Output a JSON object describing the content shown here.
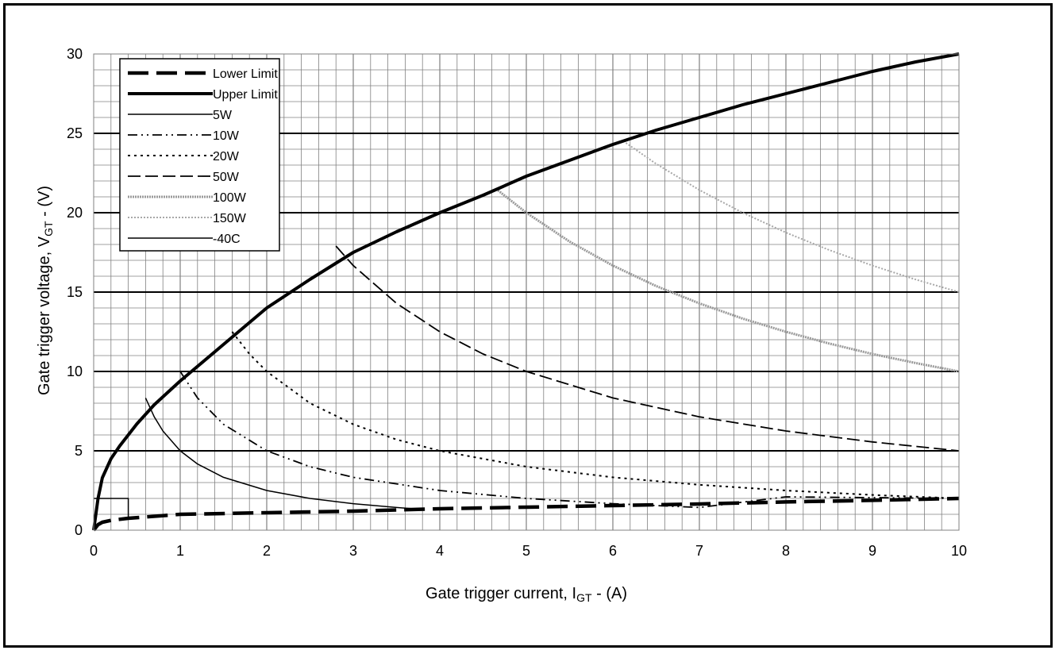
{
  "chart_data": {
    "type": "line",
    "xlabel": {
      "main": "Gate trigger current,  I",
      "sub": "GT",
      "tail": " - (A)"
    },
    "ylabel": {
      "main": "Gate trigger voltage, V",
      "sub": "GT",
      "tail": " - (V)"
    },
    "xlim": [
      0,
      10
    ],
    "ylim": [
      0,
      30
    ],
    "x_ticks": [
      "0",
      "1",
      "2",
      "3",
      "4",
      "5",
      "6",
      "7",
      "8",
      "9",
      "10"
    ],
    "y_ticks": [
      "0",
      "5",
      "10",
      "15",
      "20",
      "25",
      "30"
    ],
    "grid": true,
    "legend_position": "top-left",
    "series": [
      {
        "name": "Lower Limit",
        "style": "long-dash-thick",
        "color": "#000000",
        "x": [
          0,
          0.05,
          0.1,
          0.2,
          0.4,
          1,
          2,
          3,
          4,
          5,
          6,
          7,
          8,
          9,
          10
        ],
        "y": [
          0,
          0.35,
          0.5,
          0.62,
          0.75,
          1.0,
          1.1,
          1.2,
          1.35,
          1.45,
          1.55,
          1.65,
          1.78,
          1.88,
          2.0
        ]
      },
      {
        "name": "Upper Limit",
        "style": "solid-thick",
        "color": "#000000",
        "x": [
          0,
          0.05,
          0.1,
          0.2,
          0.3,
          0.5,
          0.7,
          0.9,
          1,
          1.5,
          2,
          2.5,
          3,
          3.5,
          4,
          4.5,
          5,
          5.5,
          6,
          6.5,
          7,
          7.5,
          8,
          8.5,
          9,
          9.5,
          10
        ],
        "y": [
          0,
          2.0,
          3.3,
          4.5,
          5.3,
          6.7,
          7.9,
          8.9,
          9.4,
          11.7,
          14.0,
          15.8,
          17.5,
          18.8,
          20.0,
          21.1,
          22.3,
          23.3,
          24.3,
          25.2,
          26.0,
          26.8,
          27.5,
          28.2,
          28.9,
          29.5,
          30.0
        ]
      },
      {
        "name": "5W",
        "style": "solid-thin",
        "color": "#000000",
        "x": [
          0.6,
          0.7,
          0.8,
          1,
          1.2,
          1.5,
          2,
          2.5,
          3,
          3.5,
          3.7
        ],
        "y": [
          8.33,
          7.14,
          6.25,
          5.0,
          4.17,
          3.33,
          2.5,
          2.0,
          1.67,
          1.43,
          1.35
        ]
      },
      {
        "name": "10W",
        "style": "dash-dot-dot",
        "color": "#000000",
        "x": [
          1,
          1.2,
          1.5,
          2,
          2.5,
          3,
          4,
          5,
          6,
          7,
          8,
          9,
          10
        ],
        "y": [
          10.0,
          8.33,
          6.67,
          5.0,
          4.0,
          3.33,
          2.5,
          2.0,
          1.67,
          1.43,
          2.1,
          2.05,
          2.0
        ]
      },
      {
        "name": "20W",
        "style": "dotted",
        "color": "#000000",
        "x": [
          1.6,
          1.8,
          2,
          2.5,
          3,
          3.5,
          4,
          5,
          6,
          7,
          8,
          9,
          10
        ],
        "y": [
          12.5,
          11.1,
          10.0,
          8.0,
          6.67,
          5.71,
          5.0,
          4.0,
          3.33,
          2.86,
          2.5,
          2.22,
          2.0
        ]
      },
      {
        "name": "50W",
        "style": "long-dash-thin",
        "color": "#000000",
        "x": [
          2.8,
          3,
          3.5,
          4,
          4.5,
          5,
          6,
          7,
          8,
          9,
          10
        ],
        "y": [
          17.9,
          16.67,
          14.29,
          12.5,
          11.1,
          10.0,
          8.33,
          7.14,
          6.25,
          5.56,
          5.0
        ]
      },
      {
        "name": "100W",
        "style": "gray-dense",
        "color": "#9a9a9a",
        "x": [
          4.65,
          5,
          5.5,
          6,
          6.5,
          7,
          7.5,
          8,
          8.5,
          9,
          9.5,
          10
        ],
        "y": [
          21.5,
          20.0,
          18.18,
          16.67,
          15.38,
          14.29,
          13.33,
          12.5,
          11.76,
          11.1,
          10.53,
          10.0
        ]
      },
      {
        "name": "150W",
        "style": "gray-dotted",
        "color": "#a8a8a8",
        "x": [
          6.15,
          6.5,
          7,
          7.5,
          8,
          8.5,
          9,
          9.5,
          10
        ],
        "y": [
          24.4,
          23.08,
          21.43,
          20.0,
          18.75,
          17.65,
          16.67,
          15.79,
          15.0
        ]
      },
      {
        "name": "-40C",
        "style": "solid-thin",
        "color": "#000000",
        "x": [
          0,
          0.4,
          0.4
        ],
        "y": [
          2.0,
          2.0,
          0.65
        ]
      }
    ]
  }
}
